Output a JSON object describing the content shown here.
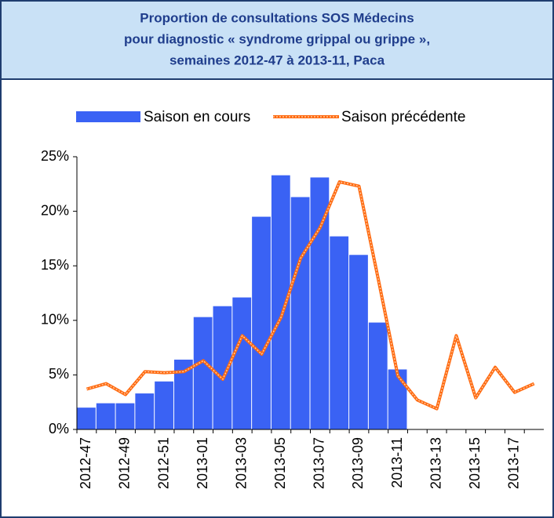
{
  "chart_data": {
    "type": "bar-line",
    "title": [
      "Proportion de consultations SOS Médecins",
      "pour diagnostic « syndrome grippal ou grippe »,",
      "semaines 2012-47 à 2013-11, Paca"
    ],
    "categories": [
      "2012-47",
      null,
      "2012-49",
      null,
      "2012-51",
      null,
      "2013-01",
      null,
      "2013-03",
      null,
      "2013-05",
      null,
      "2013-07",
      null,
      "2013-09",
      null,
      "2013-11",
      null,
      "2013-13",
      null,
      "2013-15",
      null,
      "2013-17",
      null
    ],
    "series": [
      {
        "name": "Saison en cours",
        "type": "bar",
        "color": "#3a62f4",
        "values": [
          2.0,
          2.4,
          2.4,
          3.3,
          4.4,
          6.4,
          10.3,
          11.3,
          12.1,
          19.5,
          23.3,
          21.3,
          23.1,
          17.7,
          16.0,
          9.8,
          5.5,
          null,
          null,
          null,
          null,
          null,
          null,
          null
        ]
      },
      {
        "name": "Saison précédente",
        "type": "line",
        "color": "#ff6a10",
        "values": [
          3.7,
          4.2,
          3.2,
          5.3,
          5.2,
          5.3,
          6.3,
          4.6,
          8.6,
          6.9,
          10.3,
          15.7,
          18.5,
          22.7,
          22.3,
          13.7,
          4.9,
          2.7,
          1.9,
          8.6,
          2.9,
          5.7,
          3.4,
          4.2
        ]
      }
    ],
    "ylim": [
      0,
      25
    ],
    "yticks": [
      {
        "value": 0,
        "label": "0%"
      },
      {
        "value": 5,
        "label": "5%"
      },
      {
        "value": 10,
        "label": "10%"
      },
      {
        "value": 15,
        "label": "15%"
      },
      {
        "value": 20,
        "label": "20%"
      },
      {
        "value": 25,
        "label": "25%"
      }
    ],
    "grid": false,
    "legend": "top"
  }
}
